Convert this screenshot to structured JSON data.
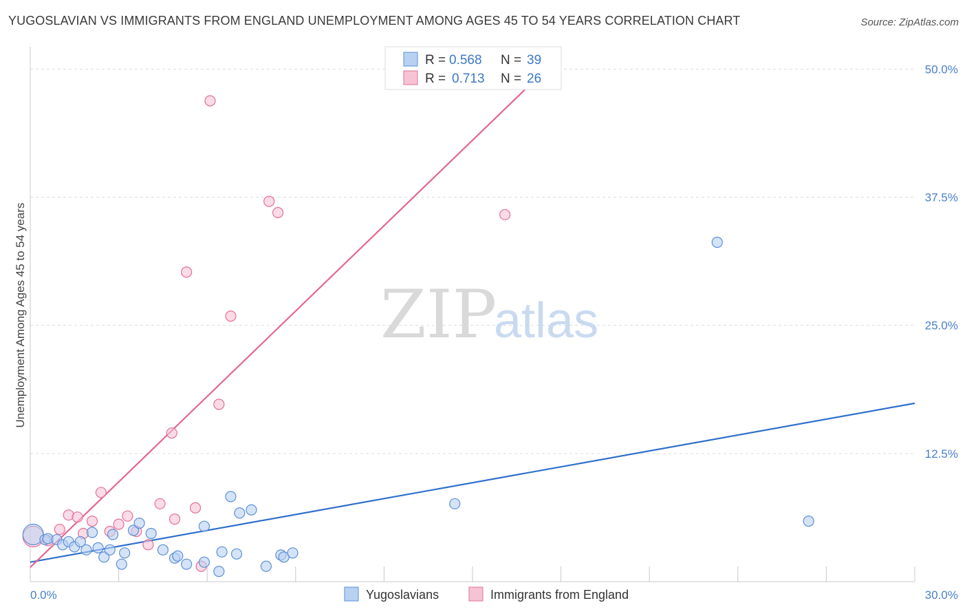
{
  "title": "YUGOSLAVIAN VS IMMIGRANTS FROM ENGLAND UNEMPLOYMENT AMONG AGES 45 TO 54 YEARS CORRELATION CHART",
  "source": "Source: ZipAtlas.com",
  "watermark": {
    "zip": "ZIP",
    "atlas": "atlas"
  },
  "chart_data": {
    "type": "scatter",
    "title": "YUGOSLAVIAN VS IMMIGRANTS FROM ENGLAND UNEMPLOYMENT AMONG AGES 45 TO 54 YEARS CORRELATION CHART",
    "xlabel": "",
    "ylabel": "Unemployment Among Ages 45 to 54 years",
    "xlim": [
      0,
      30
    ],
    "ylim": [
      0,
      51.5
    ],
    "x_tick_labels": [
      {
        "value": 0,
        "label": "0.0%"
      },
      {
        "value": 30,
        "label": "30.0%"
      }
    ],
    "y_tick_labels": [
      {
        "value": 12.5,
        "label": "12.5%"
      },
      {
        "value": 25,
        "label": "25.0%"
      },
      {
        "value": 37.5,
        "label": "37.5%"
      },
      {
        "value": 50,
        "label": "50.0%"
      }
    ],
    "grid": true,
    "legend": [
      {
        "series": "Yugoslavians",
        "r_label": "R =",
        "r_value": "0.568",
        "n_label": "N =",
        "n_value": "39",
        "color": "#5b8fd6",
        "fill": "#b9d1f1"
      },
      {
        "series": "Immigrants from England",
        "r_label": "R =",
        "r_value": "0.713",
        "n_label": "N =",
        "n_value": "26",
        "color": "#e0709a",
        "fill": "#f6c3d5"
      }
    ],
    "series": [
      {
        "name": "Yugoslavians",
        "color": "#5b8fd6",
        "fill": "#b9d1f1",
        "trend": {
          "x": [
            0,
            30
          ],
          "y": [
            1.9,
            17.4
          ],
          "color": "#2f6fcc"
        },
        "points": [
          {
            "x": 0.1,
            "y": 4.6,
            "big": true
          },
          {
            "x": 0.5,
            "y": 4.1
          },
          {
            "x": 0.6,
            "y": 4.2
          },
          {
            "x": 0.9,
            "y": 4.1
          },
          {
            "x": 1.1,
            "y": 3.6
          },
          {
            "x": 1.3,
            "y": 3.9
          },
          {
            "x": 1.5,
            "y": 3.4
          },
          {
            "x": 1.7,
            "y": 3.9
          },
          {
            "x": 1.9,
            "y": 3.1
          },
          {
            "x": 2.1,
            "y": 4.8
          },
          {
            "x": 2.3,
            "y": 3.3
          },
          {
            "x": 2.5,
            "y": 2.4
          },
          {
            "x": 2.7,
            "y": 3.1
          },
          {
            "x": 2.8,
            "y": 4.6
          },
          {
            "x": 3.1,
            "y": 1.7
          },
          {
            "x": 3.2,
            "y": 2.8
          },
          {
            "x": 3.5,
            "y": 5.0
          },
          {
            "x": 3.7,
            "y": 5.7
          },
          {
            "x": 4.1,
            "y": 4.7
          },
          {
            "x": 4.5,
            "y": 3.1
          },
          {
            "x": 4.9,
            "y": 2.3
          },
          {
            "x": 5.0,
            "y": 2.5
          },
          {
            "x": 5.3,
            "y": 1.7
          },
          {
            "x": 5.9,
            "y": 5.4
          },
          {
            "x": 5.9,
            "y": 1.9
          },
          {
            "x": 6.4,
            "y": 1.0
          },
          {
            "x": 6.5,
            "y": 2.9
          },
          {
            "x": 6.8,
            "y": 8.3
          },
          {
            "x": 7.0,
            "y": 2.7
          },
          {
            "x": 7.1,
            "y": 6.7
          },
          {
            "x": 7.5,
            "y": 7.0
          },
          {
            "x": 8.0,
            "y": 1.5
          },
          {
            "x": 8.5,
            "y": 2.6
          },
          {
            "x": 8.6,
            "y": 2.4
          },
          {
            "x": 8.9,
            "y": 2.8
          },
          {
            "x": 14.4,
            "y": 7.6
          },
          {
            "x": 23.3,
            "y": 33.1
          },
          {
            "x": 26.4,
            "y": 5.9
          }
        ]
      },
      {
        "name": "Immigrants from England",
        "color": "#e0709a",
        "fill": "#f6c3d5",
        "trend": {
          "x": [
            0,
            17.5
          ],
          "y": [
            1.4,
            50.0
          ],
          "color": "#e4668f"
        },
        "points": [
          {
            "x": 0.1,
            "y": 4.4,
            "big": true
          },
          {
            "x": 0.6,
            "y": 4.0
          },
          {
            "x": 1.0,
            "y": 5.1
          },
          {
            "x": 1.3,
            "y": 6.5
          },
          {
            "x": 1.6,
            "y": 6.3
          },
          {
            "x": 1.8,
            "y": 4.7
          },
          {
            "x": 2.1,
            "y": 5.9
          },
          {
            "x": 2.4,
            "y": 8.7
          },
          {
            "x": 2.7,
            "y": 4.9
          },
          {
            "x": 3.0,
            "y": 5.6
          },
          {
            "x": 3.3,
            "y": 6.4
          },
          {
            "x": 3.6,
            "y": 4.9
          },
          {
            "x": 4.0,
            "y": 3.6
          },
          {
            "x": 4.4,
            "y": 7.6
          },
          {
            "x": 4.8,
            "y": 14.5
          },
          {
            "x": 4.9,
            "y": 6.1
          },
          {
            "x": 5.3,
            "y": 30.2
          },
          {
            "x": 5.6,
            "y": 7.2
          },
          {
            "x": 5.8,
            "y": 1.5
          },
          {
            "x": 6.1,
            "y": 46.9
          },
          {
            "x": 6.4,
            "y": 17.3
          },
          {
            "x": 6.8,
            "y": 25.9
          },
          {
            "x": 8.1,
            "y": 37.1
          },
          {
            "x": 8.4,
            "y": 36.0
          },
          {
            "x": 16.1,
            "y": 35.8
          }
        ]
      }
    ]
  }
}
